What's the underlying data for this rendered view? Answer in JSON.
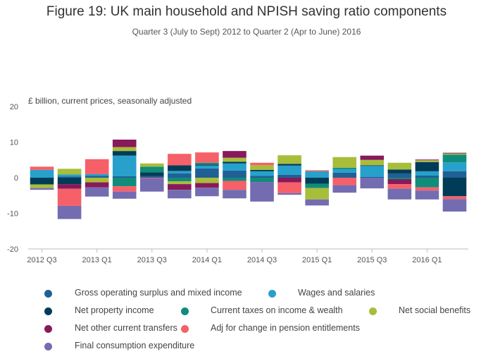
{
  "chart_data": {
    "type": "bar",
    "stacked": true,
    "title": "Figure 19: UK main household and NPISH saving ratio components",
    "subtitle": "Quarter 3 (July to Sept) 2012 to Quarter 2 (Apr to June) 2016",
    "ylabel": "£ billion, current prices, seasonally adjusted",
    "xlabel": "",
    "ylim": [
      -20,
      20
    ],
    "yticks": [
      "20",
      "10",
      "0",
      "-10",
      "-20"
    ],
    "grid": false,
    "legend_position": "bottom",
    "categories": [
      "2012 Q3",
      "2012 Q4",
      "2013 Q1",
      "2013 Q2",
      "2013 Q3",
      "2013 Q4",
      "2014 Q1",
      "2014 Q2",
      "2014 Q3",
      "2014 Q4",
      "2015 Q1",
      "2015 Q2",
      "2015 Q3",
      "2015 Q4",
      "2016 Q1",
      "2016 Q2"
    ],
    "tick_labels": [
      "2012 Q3",
      "",
      "2013 Q1",
      "",
      "2013 Q3",
      "",
      "2014 Q1",
      "",
      "2014 Q3",
      "",
      "2015 Q1",
      "",
      "2015 Q3",
      "",
      "2016 Q1",
      ""
    ],
    "series": [
      {
        "name": "Gross operating surplus and mixed income",
        "color": "#206095",
        "values": [
          0,
          0.3,
          0.5,
          0.4,
          0.5,
          1.2,
          2.6,
          2.0,
          0.5,
          0.8,
          0,
          1.4,
          0.2,
          1.2,
          0.6,
          1.8
        ]
      },
      {
        "name": "Wages and salaries",
        "color": "#27a0cc",
        "values": [
          2.2,
          0.6,
          0.5,
          5.8,
          0,
          0.7,
          0.8,
          2.0,
          1.3,
          2.6,
          1.8,
          1.0,
          3.1,
          0,
          1.2,
          2.5
        ]
      },
      {
        "name": "Net property income",
        "color": "#003c57",
        "values": [
          -1.9,
          -1.8,
          0,
          1.3,
          1.0,
          1.6,
          0.3,
          0.5,
          0.4,
          0.5,
          -1.7,
          0,
          0.2,
          1.1,
          2.6,
          -5.2
        ]
      },
      {
        "name": "Current taxes on income & wealth",
        "color": "#118c7b",
        "values": [
          0,
          0,
          0,
          -2.4,
          1.6,
          -1.0,
          0.5,
          -0.9,
          -1.2,
          0,
          -1.2,
          0.4,
          0,
          -0.4,
          -2.7,
          2.2
        ]
      },
      {
        "name": "Net social benefits",
        "color": "#a8bd3a",
        "values": [
          -1.0,
          1.6,
          -1.3,
          1.1,
          0.9,
          -0.8,
          -1.5,
          1.1,
          1.3,
          2.4,
          -3.2,
          3.0,
          1.5,
          1.9,
          0.5,
          0.3
        ]
      },
      {
        "name": "Net other current transfers",
        "color": "#871a5b",
        "values": [
          0,
          -1.3,
          -1.4,
          2.1,
          0,
          -1.6,
          -1.3,
          1.9,
          0,
          -1.3,
          0,
          0,
          1.2,
          -1.4,
          0.2,
          0.2
        ]
      },
      {
        "name": "Adj for change in pension entitlements",
        "color": "#f66068",
        "values": [
          0.9,
          -4.8,
          4.2,
          -1.5,
          -0.2,
          3.2,
          2.9,
          -2.5,
          0.7,
          -3.0,
          0.3,
          -2.1,
          0,
          -1.3,
          -0.9,
          -0.8
        ]
      },
      {
        "name": "Final consumption expenditure",
        "color": "#746cb1",
        "values": [
          -0.5,
          -3.7,
          -2.6,
          -2.0,
          -3.7,
          -2.4,
          -2.4,
          -2.4,
          -5.5,
          -0.5,
          -1.7,
          -2.1,
          -3.0,
          -3.0,
          -2.5,
          -3.5
        ]
      }
    ]
  }
}
